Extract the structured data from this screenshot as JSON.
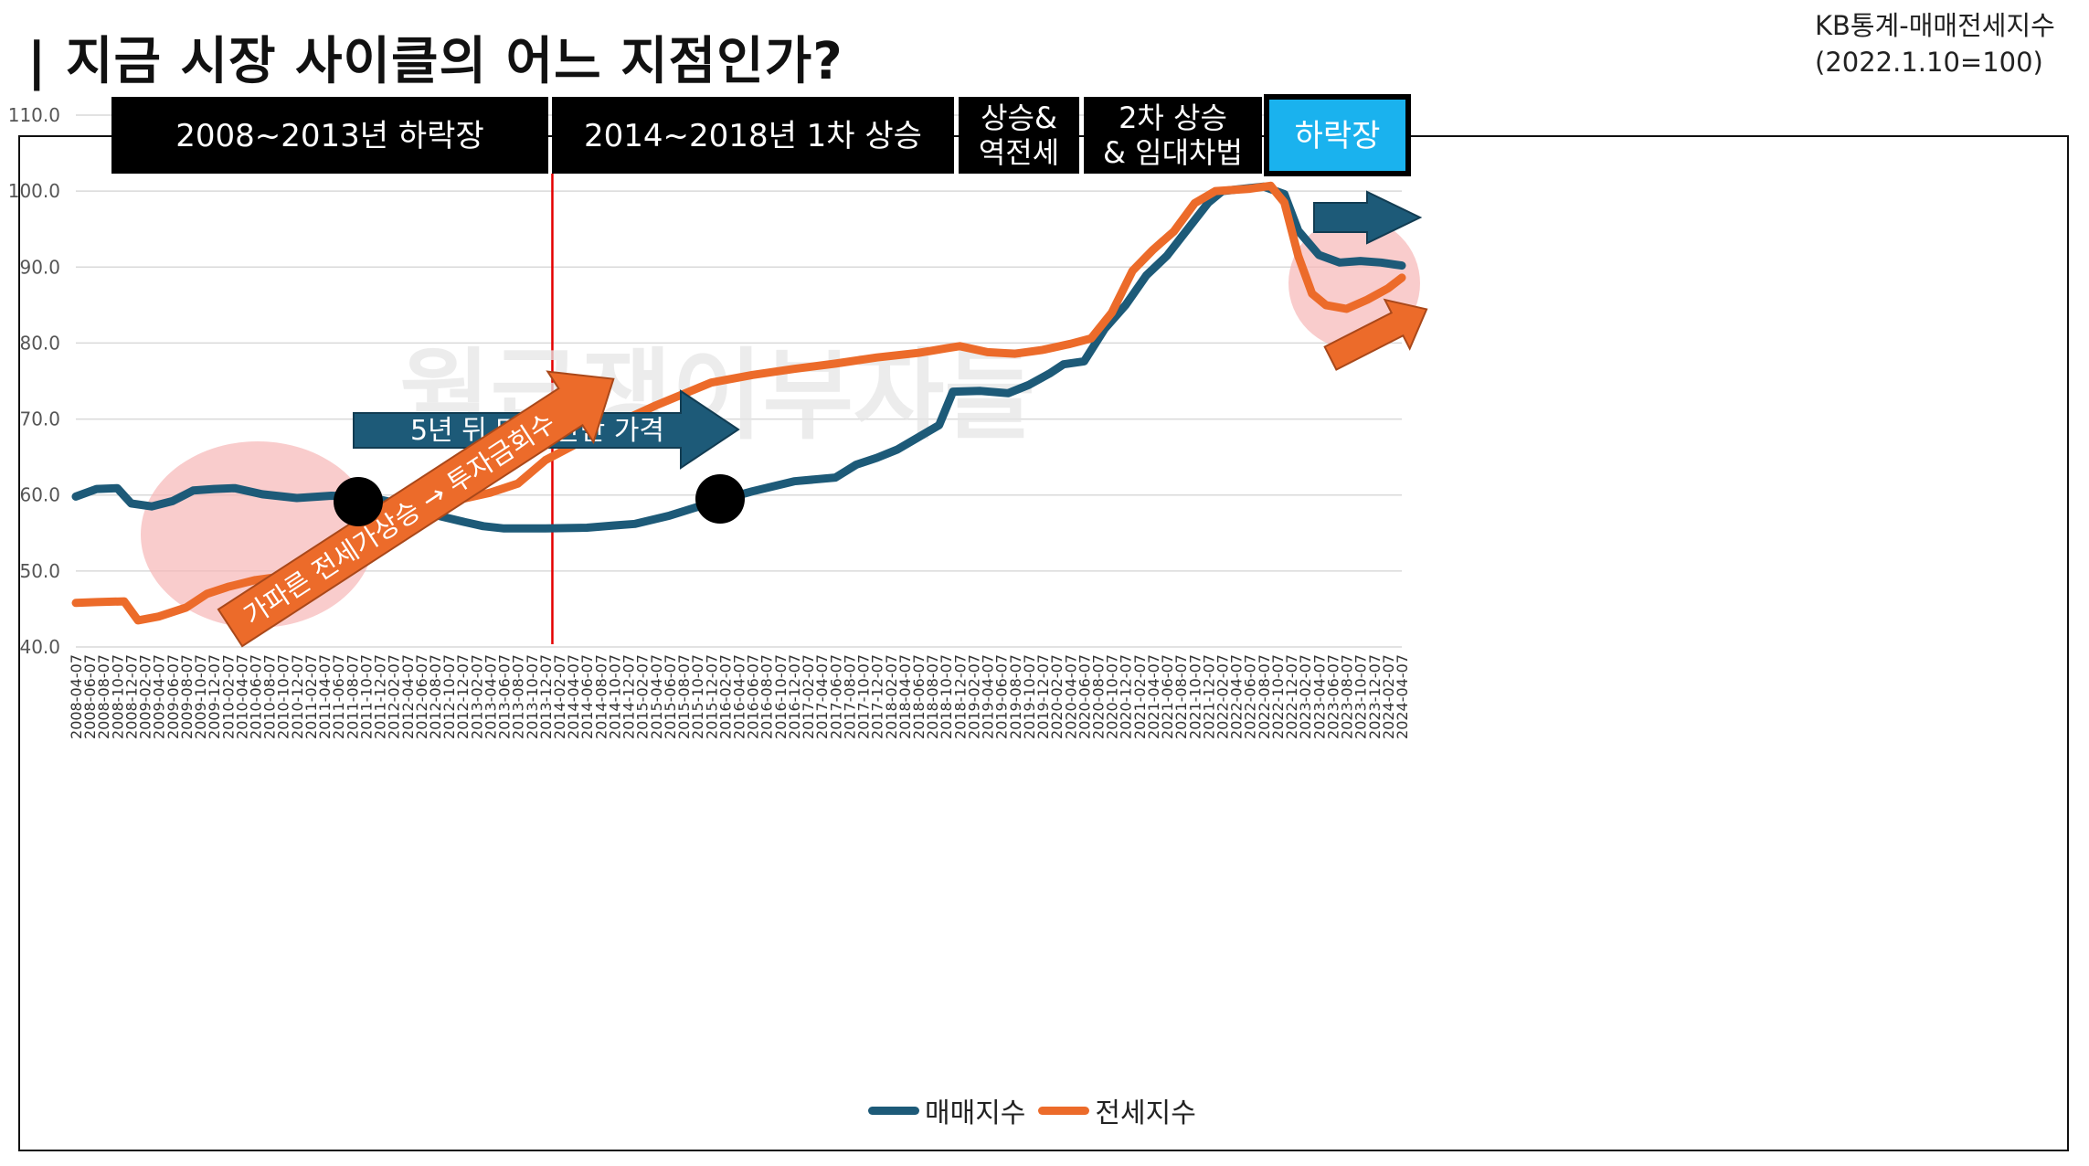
{
  "header": {
    "title": "|  지금 시장 사이클의 어느 지점인가?",
    "source_line1": "KB통계-매매전세지수",
    "source_line2": "(2022.1.10=100)"
  },
  "colors": {
    "sale": "#1d5a78",
    "jeonse": "#ec6b2a",
    "phase_box": "#000000",
    "phase_box_current": "#1ab2ee",
    "cycle_line": "#e50000",
    "highlight_circle": "#f7b7b7",
    "arrow_blue": "#1d5a78",
    "arrow_orange": "#ec6b2a"
  },
  "phases": [
    {
      "label": "2008~2013년 하락장"
    },
    {
      "label": "2014~2018년 1차 상승"
    },
    {
      "label": "상승&\n역전세"
    },
    {
      "label": "2차 상승\n& 임대차법"
    },
    {
      "label": "하락장"
    }
  ],
  "annotations": {
    "blue_arrow": "5년 뒤 다시 만난 가격",
    "orange_arrow": "가파른 전세가상승 → 투자금회수",
    "watermark": "월급쟁이부자들"
  },
  "chart_data": {
    "type": "line",
    "title": "",
    "xlabel": "",
    "ylabel": "",
    "ylim": [
      40,
      110
    ],
    "y_ticks": [
      "40.0",
      "50.0",
      "60.0",
      "70.0",
      "80.0",
      "90.0",
      "100.0",
      "110.0"
    ],
    "x_start": "2008-04-07",
    "x_end": "2024-04-07",
    "x_ticks": [
      "2008-04-07",
      "2008-06-07",
      "2008-08-07",
      "2008-10-07",
      "2008-12-07",
      "2009-02-07",
      "2009-04-07",
      "2009-06-07",
      "2009-08-07",
      "2009-10-07",
      "2009-12-07",
      "2010-02-07",
      "2010-04-07",
      "2010-06-07",
      "2010-08-07",
      "2010-10-07",
      "2010-12-07",
      "2011-02-07",
      "2011-04-07",
      "2011-06-07",
      "2011-08-07",
      "2011-10-07",
      "2011-12-07",
      "2012-02-07",
      "2012-04-07",
      "2012-06-07",
      "2012-08-07",
      "2012-10-07",
      "2012-12-07",
      "2013-02-07",
      "2013-04-07",
      "2013-06-07",
      "2013-08-07",
      "2013-10-07",
      "2013-12-07",
      "2014-02-07",
      "2014-04-07",
      "2014-06-07",
      "2014-08-07",
      "2014-10-07",
      "2014-12-07",
      "2015-02-07",
      "2015-04-07",
      "2015-06-07",
      "2015-08-07",
      "2015-10-07",
      "2015-12-07",
      "2016-02-07",
      "2016-04-07",
      "2016-06-07",
      "2016-08-07",
      "2016-10-07",
      "2016-12-07",
      "2017-02-07",
      "2017-04-07",
      "2017-06-07",
      "2017-08-07",
      "2017-10-07",
      "2017-12-07",
      "2018-02-07",
      "2018-04-07",
      "2018-06-07",
      "2018-08-07",
      "2018-10-07",
      "2018-12-07",
      "2019-02-07",
      "2019-04-07",
      "2019-06-07",
      "2019-08-07",
      "2019-10-07",
      "2019-12-07",
      "2020-02-07",
      "2020-04-07",
      "2020-06-07",
      "2020-08-07",
      "2020-10-07",
      "2020-12-07",
      "2021-02-07",
      "2021-04-07",
      "2021-06-07",
      "2021-08-07",
      "2021-10-07",
      "2021-12-07",
      "2022-02-07",
      "2022-04-07",
      "2022-06-07",
      "2022-08-07",
      "2022-10-07",
      "2022-12-07",
      "2023-02-07",
      "2023-04-07",
      "2023-06-07",
      "2023-08-07",
      "2023-10-07",
      "2023-12-07",
      "2024-02-07",
      "2024-04-07"
    ],
    "grid": true,
    "legend_position": "bottom",
    "series": [
      {
        "name": "매매지수",
        "points": [
          [
            "2008-04",
            59.8
          ],
          [
            "2008-07",
            60.8
          ],
          [
            "2008-10",
            60.9
          ],
          [
            "2008-12",
            58.9
          ],
          [
            "2009-03",
            58.5
          ],
          [
            "2009-06",
            59.2
          ],
          [
            "2009-09",
            60.6
          ],
          [
            "2009-12",
            60.8
          ],
          [
            "2010-03",
            60.9
          ],
          [
            "2010-07",
            60.1
          ],
          [
            "2010-12",
            59.6
          ],
          [
            "2011-05",
            59.9
          ],
          [
            "2011-10",
            59.8
          ],
          [
            "2012-03",
            58.8
          ],
          [
            "2012-07",
            57.6
          ],
          [
            "2012-12",
            56.5
          ],
          [
            "2013-03",
            55.9
          ],
          [
            "2013-06",
            55.6
          ],
          [
            "2013-12",
            55.6
          ],
          [
            "2014-06",
            55.7
          ],
          [
            "2014-10",
            56.0
          ],
          [
            "2015-01",
            56.2
          ],
          [
            "2015-06",
            57.3
          ],
          [
            "2015-12",
            59.0
          ],
          [
            "2016-06",
            60.5
          ],
          [
            "2016-12",
            61.8
          ],
          [
            "2017-06",
            62.3
          ],
          [
            "2017-09",
            64.0
          ],
          [
            "2017-12",
            64.9
          ],
          [
            "2018-03",
            66.0
          ],
          [
            "2018-06",
            67.6
          ],
          [
            "2018-09",
            69.2
          ],
          [
            "2018-11",
            73.6
          ],
          [
            "2019-03",
            73.7
          ],
          [
            "2019-07",
            73.4
          ],
          [
            "2019-10",
            74.5
          ],
          [
            "2020-01",
            76.0
          ],
          [
            "2020-03",
            77.2
          ],
          [
            "2020-06",
            77.6
          ],
          [
            "2020-09",
            81.9
          ],
          [
            "2020-12",
            85.0
          ],
          [
            "2021-03",
            88.9
          ],
          [
            "2021-06",
            91.5
          ],
          [
            "2021-09",
            95.0
          ],
          [
            "2021-12",
            98.5
          ],
          [
            "2022-02",
            100.0
          ],
          [
            "2022-05",
            100.3
          ],
          [
            "2022-08",
            100.6
          ],
          [
            "2022-11",
            99.6
          ],
          [
            "2023-01",
            94.8
          ],
          [
            "2023-04",
            91.6
          ],
          [
            "2023-07",
            90.6
          ],
          [
            "2023-10",
            90.8
          ],
          [
            "2024-01",
            90.6
          ],
          [
            "2024-04",
            90.2
          ]
        ]
      },
      {
        "name": "전세지수",
        "points": [
          [
            "2008-04",
            45.8
          ],
          [
            "2008-07",
            45.9
          ],
          [
            "2008-11",
            46.0
          ],
          [
            "2009-01",
            43.5
          ],
          [
            "2009-04",
            44.0
          ],
          [
            "2009-08",
            45.2
          ],
          [
            "2009-11",
            47.0
          ],
          [
            "2010-02",
            47.9
          ],
          [
            "2010-06",
            48.8
          ],
          [
            "2010-10",
            49.3
          ],
          [
            "2011-01",
            50.4
          ],
          [
            "2011-05",
            52.6
          ],
          [
            "2011-08",
            54.3
          ],
          [
            "2011-11",
            56.8
          ],
          [
            "2011-12",
            57.9
          ],
          [
            "2012-04",
            58.4
          ],
          [
            "2012-08",
            58.6
          ],
          [
            "2012-12",
            59.5
          ],
          [
            "2013-04",
            60.3
          ],
          [
            "2013-08",
            61.5
          ],
          [
            "2013-12",
            64.6
          ],
          [
            "2014-04",
            66.5
          ],
          [
            "2014-10",
            69.3
          ],
          [
            "2015-04",
            71.8
          ],
          [
            "2015-08",
            73.3
          ],
          [
            "2015-12",
            74.8
          ],
          [
            "2016-06",
            75.8
          ],
          [
            "2016-12",
            76.6
          ],
          [
            "2017-06",
            77.3
          ],
          [
            "2017-12",
            78.1
          ],
          [
            "2018-06",
            78.7
          ],
          [
            "2018-10",
            79.3
          ],
          [
            "2018-12",
            79.6
          ],
          [
            "2019-04",
            78.8
          ],
          [
            "2019-08",
            78.6
          ],
          [
            "2019-12",
            79.1
          ],
          [
            "2020-04",
            79.9
          ],
          [
            "2020-07",
            80.6
          ],
          [
            "2020-10",
            84.0
          ],
          [
            "2021-01",
            89.5
          ],
          [
            "2021-04",
            92.3
          ],
          [
            "2021-07",
            94.7
          ],
          [
            "2021-10",
            98.4
          ],
          [
            "2022-01",
            100.0
          ],
          [
            "2022-06",
            100.3
          ],
          [
            "2022-09",
            100.7
          ],
          [
            "2022-11",
            98.5
          ],
          [
            "2023-01",
            91.5
          ],
          [
            "2023-03",
            86.5
          ],
          [
            "2023-05",
            85.0
          ],
          [
            "2023-08",
            84.5
          ],
          [
            "2023-11",
            85.7
          ],
          [
            "2024-02",
            87.2
          ],
          [
            "2024-04",
            88.6
          ]
        ]
      }
    ]
  }
}
